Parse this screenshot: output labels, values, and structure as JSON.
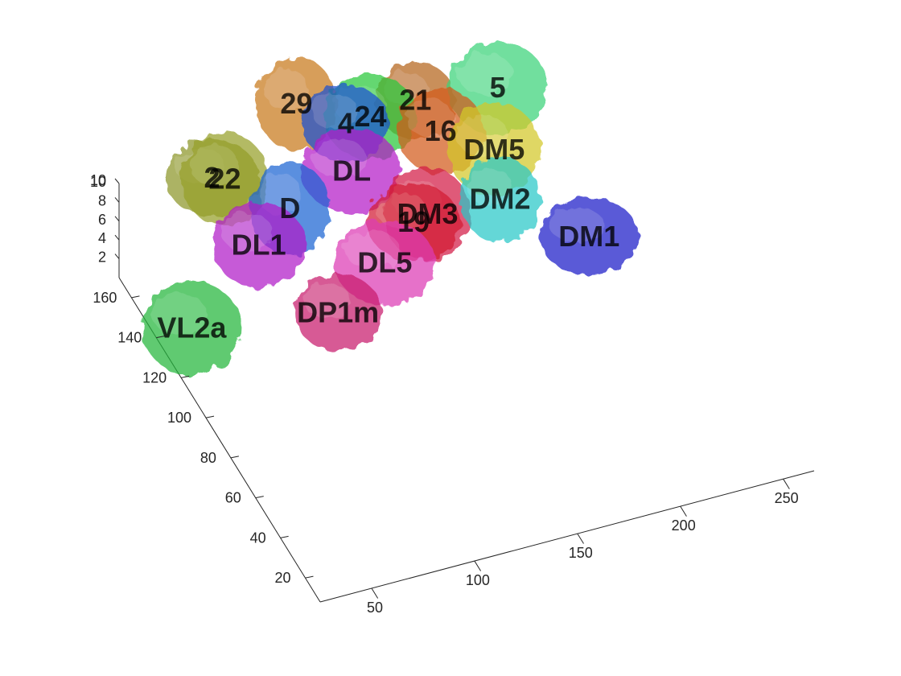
{
  "chart_data": {
    "type": "scatter",
    "subtype": "3d-isosurface",
    "title": "",
    "xlabel": "",
    "ylabel": "",
    "zlabel": "",
    "grid": false,
    "legend": "none",
    "x_ticks": [
      "50",
      "100",
      "150",
      "200",
      "250"
    ],
    "y_ticks": [
      "20",
      "40",
      "60",
      "80",
      "100",
      "120",
      "140",
      "160"
    ],
    "z_ticks": [
      "2",
      "4",
      "6",
      "8",
      "10"
    ],
    "xlim": [
      25,
      265
    ],
    "ylim": [
      8,
      170
    ],
    "zlim": [
      0,
      10
    ],
    "regions": [
      {
        "label": "VL2a",
        "color": "#22b53a",
        "x": 35,
        "y": 128,
        "z": 3
      },
      {
        "label": "DL1",
        "color": "#b01ec8",
        "x": 82,
        "y": 152,
        "z": 4
      },
      {
        "label": "DP1m",
        "color": "#c81e6e",
        "x": 100,
        "y": 118,
        "z": 3
      },
      {
        "label": "D",
        "color": "#1e64d2",
        "x": 102,
        "y": 160,
        "z": 5
      },
      {
        "label": "DL5",
        "color": "#dc3cb4",
        "x": 130,
        "y": 130,
        "z": 4
      },
      {
        "label": "19",
        "color": "#d21e32",
        "x": 150,
        "y": 140,
        "z": 5
      },
      {
        "label": "DM3",
        "color": "#d21e46",
        "x": 158,
        "y": 142,
        "z": 5
      },
      {
        "label": "DM2",
        "color": "#28c8c8",
        "x": 192,
        "y": 140,
        "z": 5
      },
      {
        "label": "DM1",
        "color": "#1e1ec8",
        "x": 222,
        "y": 118,
        "z": 4
      },
      {
        "label": "DM5",
        "color": "#d2c828",
        "x": 200,
        "y": 158,
        "z": 6
      },
      {
        "label": "16",
        "color": "#d25a1e",
        "x": 180,
        "y": 168,
        "z": 7
      },
      {
        "label": "21",
        "color": "#b4641e",
        "x": 175,
        "y": 180,
        "z": 8
      },
      {
        "label": "5",
        "color": "#3cd278",
        "x": 215,
        "y": 180,
        "z": 7
      },
      {
        "label": "24",
        "color": "#28c83c",
        "x": 152,
        "y": 178,
        "z": 8
      },
      {
        "label": "4",
        "color": "#1e50d2",
        "x": 140,
        "y": 178,
        "z": 8
      },
      {
        "label": "29",
        "color": "#c8781e",
        "x": 122,
        "y": 188,
        "z": 9
      },
      {
        "label": "DL",
        "color": "#b41ec8",
        "x": 135,
        "y": 165,
        "z": 6
      },
      {
        "label": "2",
        "color": "#8c9628",
        "x": 75,
        "y": 178,
        "z": 6
      },
      {
        "label": "22",
        "color": "#96a028",
        "x": 80,
        "y": 176,
        "z": 6
      }
    ]
  }
}
